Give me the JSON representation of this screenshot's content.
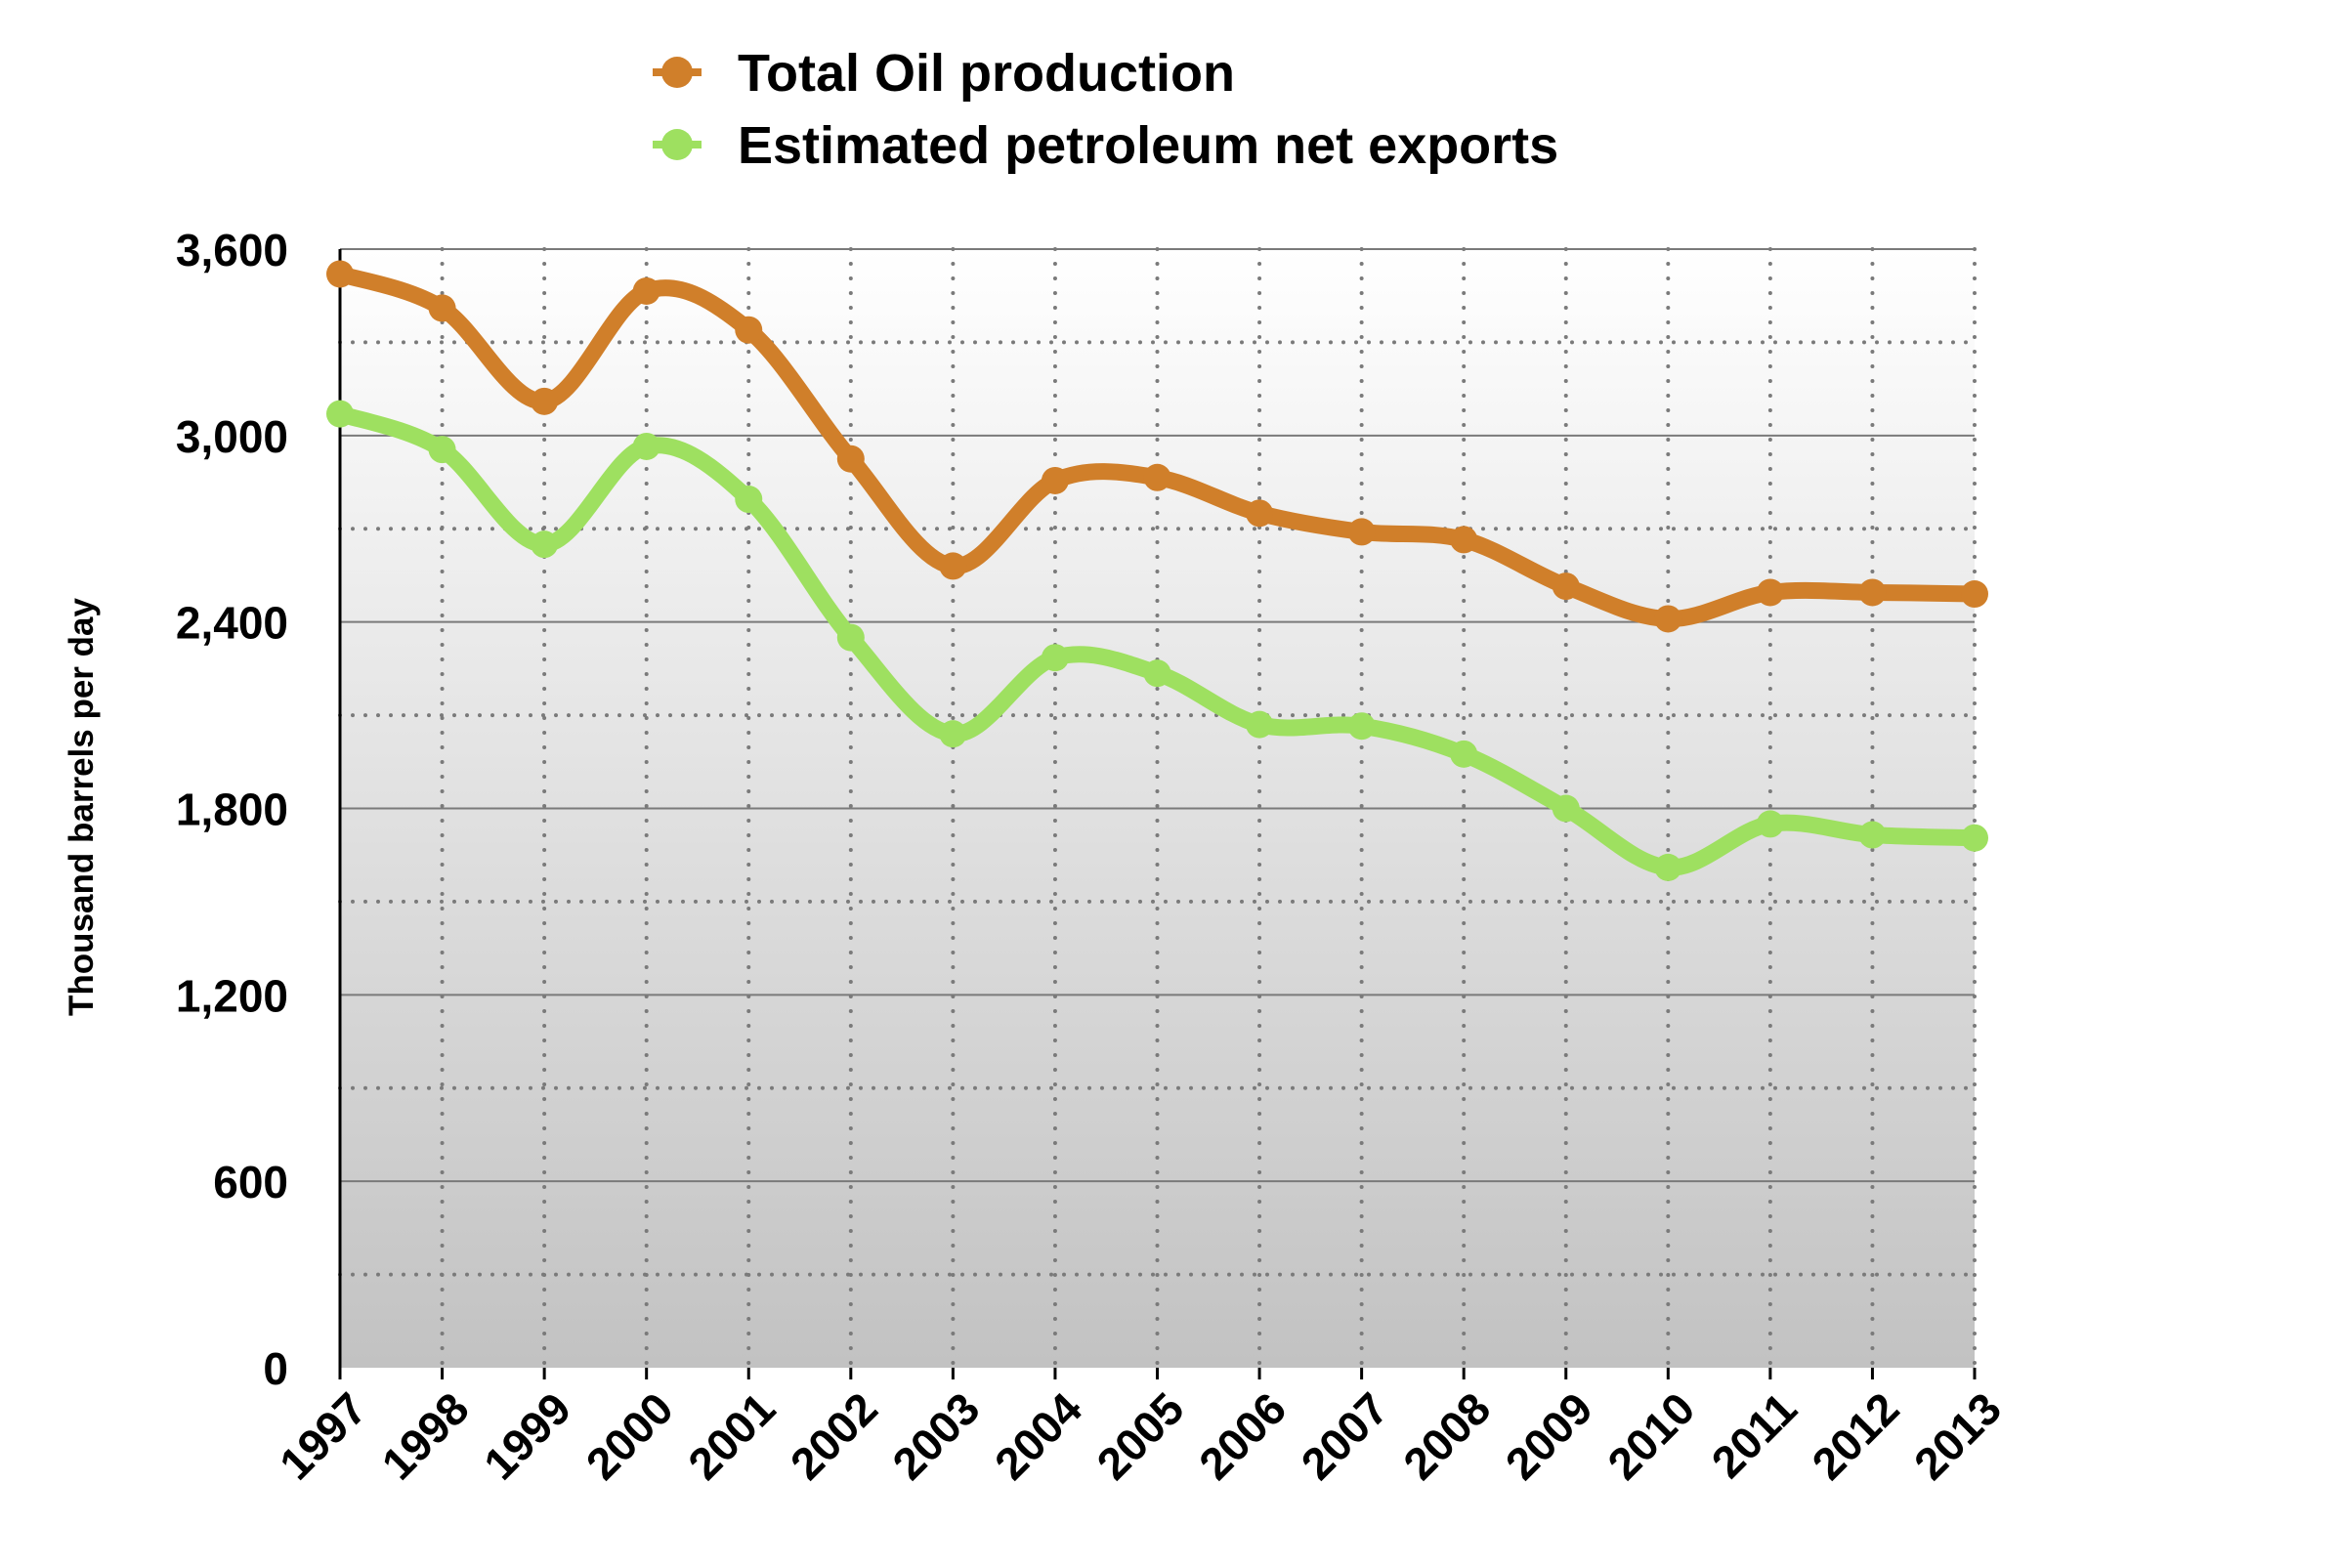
{
  "chart_data": {
    "type": "line",
    "title": "",
    "xlabel": "",
    "ylabel": "Thousand barrels per day",
    "ylim": [
      0,
      3600
    ],
    "yticks": [
      "0",
      "600",
      "1,200",
      "1,800",
      "2,400",
      "3,000",
      "3,600"
    ],
    "ytick_values": [
      0,
      600,
      1200,
      1800,
      2400,
      3000,
      3600
    ],
    "grid": true,
    "legend_position": "top",
    "categories": [
      "1997",
      "1998",
      "1999",
      "2000",
      "2001",
      "2002",
      "2003",
      "2004",
      "2005",
      "2006",
      "2007",
      "2008",
      "2009",
      "2010",
      "2011",
      "2012",
      "2013"
    ],
    "series": [
      {
        "name": "Total Oil production",
        "color": "#d07f2a",
        "values": [
          3520,
          3410,
          3110,
          3465,
          3340,
          2925,
          2580,
          2855,
          2865,
          2750,
          2690,
          2665,
          2515,
          2410,
          2495,
          2495,
          2490
        ]
      },
      {
        "name": "Estimated petroleum net exports",
        "color": "#9ee060",
        "values": [
          3070,
          2955,
          2650,
          2965,
          2795,
          2350,
          2040,
          2285,
          2235,
          2070,
          2065,
          1975,
          1800,
          1610,
          1750,
          1715,
          1705
        ]
      }
    ]
  }
}
